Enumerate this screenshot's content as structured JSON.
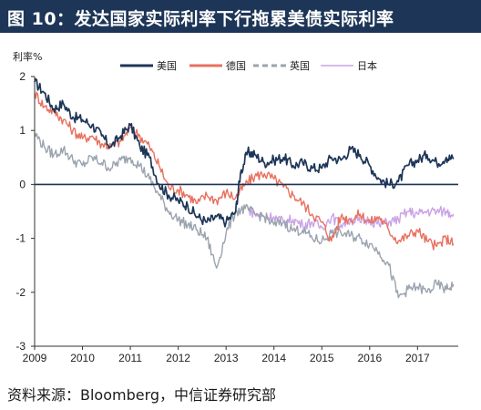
{
  "figure": {
    "title": "图 10：发达国家实际利率下行拖累美债实际利率",
    "source": "资料来源：Bloomberg，中信证券研究部"
  },
  "chart_data": {
    "type": "line",
    "ylabel": "利率%",
    "ylim": [
      -3,
      2
    ],
    "yticks": [
      2,
      1,
      0,
      -1,
      -2,
      -3
    ],
    "xlim": [
      2009.0,
      2017.85
    ],
    "xticks": [
      "2009",
      "2010",
      "2011",
      "2012",
      "2013",
      "2014",
      "2015",
      "2016",
      "2017"
    ],
    "grid": false,
    "legend_position": "top-center",
    "series": [
      {
        "name": "美国",
        "color": "#1d3557",
        "style": "solid",
        "x": [
          2009.0,
          2009.2,
          2009.4,
          2009.6,
          2009.8,
          2010.0,
          2010.2,
          2010.4,
          2010.6,
          2010.8,
          2011.0,
          2011.2,
          2011.4,
          2011.6,
          2011.8,
          2012.0,
          2012.2,
          2012.4,
          2012.6,
          2012.8,
          2013.0,
          2013.2,
          2013.3,
          2013.45,
          2013.6,
          2013.8,
          2014.0,
          2014.2,
          2014.4,
          2014.6,
          2014.8,
          2015.0,
          2015.2,
          2015.4,
          2015.6,
          2015.8,
          2016.0,
          2016.2,
          2016.4,
          2016.6,
          2016.8,
          2017.0,
          2017.2,
          2017.4,
          2017.6,
          2017.75
        ],
        "y": [
          1.9,
          1.7,
          1.4,
          1.5,
          1.25,
          1.2,
          1.1,
          0.9,
          0.7,
          0.9,
          1.1,
          0.7,
          0.5,
          0.0,
          -0.2,
          -0.3,
          -0.4,
          -0.6,
          -0.7,
          -0.6,
          -0.7,
          -0.5,
          0.2,
          0.6,
          0.55,
          0.4,
          0.45,
          0.5,
          0.35,
          0.4,
          0.3,
          0.3,
          0.5,
          0.45,
          0.65,
          0.55,
          0.35,
          0.1,
          0.0,
          0.05,
          0.35,
          0.45,
          0.55,
          0.4,
          0.5,
          0.47
        ]
      },
      {
        "name": "德国",
        "color": "#e8705f",
        "style": "solid",
        "x": [
          2009.0,
          2009.2,
          2009.4,
          2009.6,
          2009.8,
          2010.0,
          2010.2,
          2010.4,
          2010.6,
          2010.8,
          2011.0,
          2011.2,
          2011.4,
          2011.6,
          2011.8,
          2012.0,
          2012.2,
          2012.4,
          2012.6,
          2012.8,
          2013.0,
          2013.2,
          2013.4,
          2013.6,
          2013.8,
          2014.0,
          2014.2,
          2014.4,
          2014.6,
          2014.8,
          2015.0,
          2015.2,
          2015.4,
          2015.6,
          2015.8,
          2016.0,
          2016.2,
          2016.4,
          2016.6,
          2016.8,
          2017.0,
          2017.2,
          2017.4,
          2017.6,
          2017.75
        ],
        "y": [
          1.7,
          1.45,
          1.35,
          1.2,
          1.0,
          0.85,
          0.9,
          0.75,
          0.7,
          0.8,
          1.05,
          0.9,
          0.7,
          0.35,
          -0.05,
          -0.1,
          -0.2,
          -0.35,
          -0.2,
          -0.3,
          -0.15,
          -0.25,
          0.0,
          0.15,
          0.2,
          0.1,
          -0.05,
          -0.2,
          -0.35,
          -0.55,
          -0.7,
          -1.05,
          -0.6,
          -0.65,
          -0.55,
          -0.7,
          -0.6,
          -0.85,
          -1.05,
          -0.95,
          -0.85,
          -1.05,
          -1.15,
          -1.0,
          -1.1
        ]
      },
      {
        "name": "英国",
        "color": "#9aa3ae",
        "style": "dashed",
        "x": [
          2009.0,
          2009.2,
          2009.4,
          2009.6,
          2009.8,
          2010.0,
          2010.2,
          2010.4,
          2010.6,
          2010.8,
          2011.0,
          2011.2,
          2011.4,
          2011.6,
          2011.8,
          2012.0,
          2012.2,
          2012.4,
          2012.6,
          2012.8,
          2013.0,
          2013.2,
          2013.4,
          2013.6,
          2013.8,
          2014.0,
          2014.2,
          2014.4,
          2014.6,
          2014.8,
          2015.0,
          2015.2,
          2015.4,
          2015.6,
          2015.8,
          2016.0,
          2016.2,
          2016.4,
          2016.6,
          2016.8,
          2017.0,
          2017.2,
          2017.4,
          2017.6,
          2017.75
        ],
        "y": [
          0.95,
          0.7,
          0.55,
          0.65,
          0.45,
          0.35,
          0.5,
          0.4,
          0.3,
          0.45,
          0.5,
          0.35,
          0.1,
          -0.2,
          -0.5,
          -0.65,
          -0.75,
          -0.85,
          -1.0,
          -1.55,
          -0.9,
          -0.5,
          -0.45,
          -0.55,
          -0.6,
          -0.75,
          -0.7,
          -0.85,
          -0.85,
          -1.0,
          -1.05,
          -0.9,
          -0.9,
          -0.95,
          -1.0,
          -1.1,
          -1.25,
          -1.5,
          -2.1,
          -1.95,
          -1.9,
          -2.0,
          -1.85,
          -1.95,
          -1.85
        ]
      },
      {
        "name": "日本",
        "color": "#c9a3e6",
        "style": "solid",
        "x": [
          2013.45,
          2013.6,
          2013.8,
          2014.0,
          2014.2,
          2014.4,
          2014.6,
          2014.8,
          2015.0,
          2015.2,
          2015.4,
          2015.6,
          2015.8,
          2016.0,
          2016.2,
          2016.4,
          2016.6,
          2016.8,
          2017.0,
          2017.2,
          2017.4,
          2017.6,
          2017.75
        ],
        "y": [
          -0.45,
          -0.55,
          -0.6,
          -0.6,
          -0.7,
          -0.65,
          -0.75,
          -0.7,
          -0.8,
          -0.6,
          -0.75,
          -0.65,
          -0.7,
          -0.65,
          -0.75,
          -0.7,
          -0.65,
          -0.5,
          -0.55,
          -0.5,
          -0.5,
          -0.5,
          -0.55
        ]
      }
    ]
  }
}
